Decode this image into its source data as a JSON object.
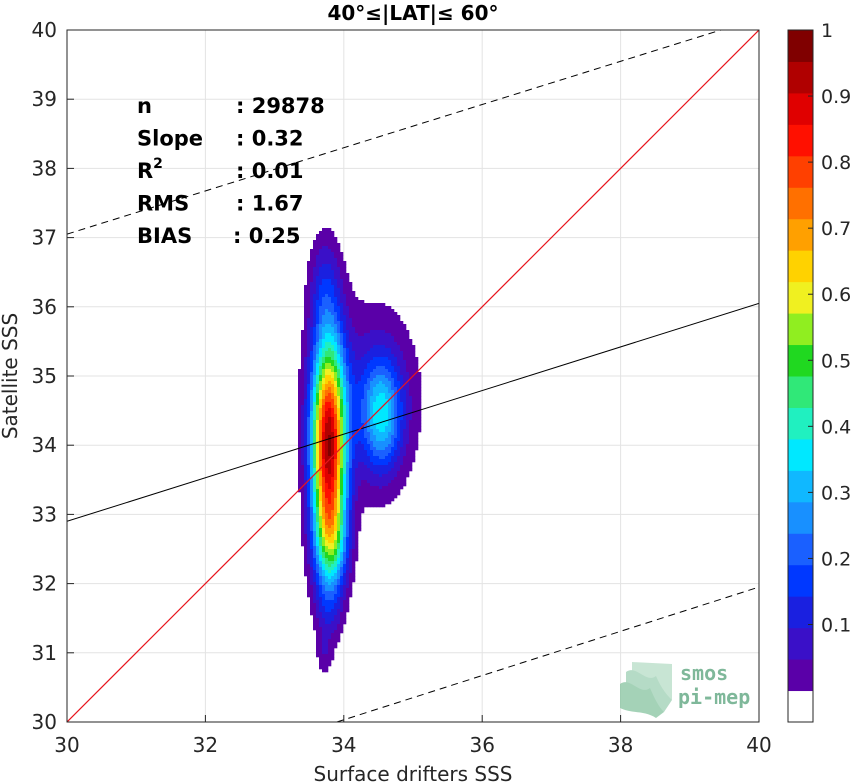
{
  "colors": {
    "identity_line": "#e8141c",
    "fit_line": "#000000",
    "band_line": "#000000",
    "grid": "#e3e3e3",
    "logo": "#7fb89a"
  },
  "colormap": [
    "#ffffff",
    "#5a00a8",
    "#3a10c8",
    "#1a20e0",
    "#0038ff",
    "#1a60ff",
    "#1890ff",
    "#10b8ff",
    "#00e8ff",
    "#20f0c0",
    "#30e878",
    "#20d820",
    "#90ee20",
    "#f0f020",
    "#ffd200",
    "#ffa000",
    "#ff7000",
    "#ff4000",
    "#ff1000",
    "#e00000",
    "#b00000",
    "#800000"
  ],
  "logo": {
    "line1": "smos",
    "line2": "pi-mep",
    "icon": "wave-stack-icon"
  },
  "chart_data": {
    "type": "density-contour",
    "title": "40°≤|LAT|≤ 60°",
    "xlabel": "Surface drifters SSS",
    "ylabel": "Satellite SSS",
    "xlim": [
      30,
      40
    ],
    "ylim": [
      30,
      40
    ],
    "xticks": [
      30,
      32,
      34,
      36,
      38,
      40
    ],
    "yticks": [
      30,
      31,
      32,
      33,
      34,
      35,
      36,
      37,
      38,
      39,
      40
    ],
    "grid": true,
    "stats": [
      {
        "label": "n",
        "value": ": 29878"
      },
      {
        "label": "Slope",
        "value": ": 0.32"
      },
      {
        "label": "R",
        "sup": "2",
        "value": ": 0.01"
      },
      {
        "label": "RMS",
        "value": ": 1.67"
      },
      {
        "label": "BIAS",
        "value": ": 0.25"
      }
    ],
    "identity_line": {
      "x": [
        30,
        40
      ],
      "y": [
        30,
        40
      ]
    },
    "fit_line": {
      "x": [
        30,
        40
      ],
      "y": [
        32.9,
        36.05
      ]
    },
    "band_upper": {
      "x": [
        30,
        39.45
      ],
      "y": [
        37.05,
        40
      ]
    },
    "band_lower": {
      "x": [
        33.9,
        40
      ],
      "y": [
        30,
        31.95
      ]
    },
    "colorbar": {
      "min": 0,
      "max": 1,
      "ticks": [
        0.1,
        0.2,
        0.3,
        0.4,
        0.5,
        0.6,
        0.7,
        0.8,
        0.9,
        1
      ],
      "tick_labels": [
        "0.1",
        "0.2",
        "0.3",
        "0.4",
        "0.5",
        "0.6",
        "0.7",
        "0.8",
        "0.9",
        "1"
      ]
    },
    "density_peaks": [
      {
        "cx": 33.78,
        "cy": 34.0,
        "sx": 0.17,
        "sy": 1.05,
        "amp": 1.0
      },
      {
        "cx": 33.82,
        "cy": 32.6,
        "sx": 0.17,
        "sy": 0.5,
        "amp": 0.3
      },
      {
        "cx": 34.55,
        "cy": 34.45,
        "sx": 0.2,
        "sy": 0.55,
        "amp": 0.34
      },
      {
        "cx": 33.72,
        "cy": 36.3,
        "sx": 0.16,
        "sy": 0.55,
        "amp": 0.12
      },
      {
        "cx": 34.35,
        "cy": 34.7,
        "sx": 0.55,
        "sy": 1.0,
        "amp": 0.12
      },
      {
        "cx": 33.78,
        "cy": 31.6,
        "sx": 0.14,
        "sy": 0.35,
        "amp": 0.09
      },
      {
        "cx": 33.72,
        "cy": 30.95,
        "sx": 0.08,
        "sy": 0.2,
        "amp": 0.07
      }
    ]
  }
}
